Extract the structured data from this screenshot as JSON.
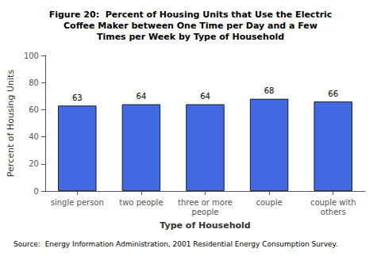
{
  "chart_data": {
    "type": "bar",
    "title": "Figure 20:  Percent of Housing Units that Use the Electric\nCoffee Maker between One Time per Day and a Few\nTimes per Week by Type of Household",
    "categories": [
      "single person",
      "two people",
      "three or more\npeople",
      "couple",
      "couple with\nothers"
    ],
    "values": [
      63,
      64,
      64,
      68,
      66
    ],
    "color": "#4169E1",
    "xlabel": "Type of Household",
    "ylabel": "Percent of Housing Units",
    "ylim": [
      0,
      100
    ],
    "yticks": [
      0,
      20,
      40,
      60,
      80,
      100
    ],
    "grid": false,
    "data_labels": true,
    "source": "Source:  Energy Information Administration, 2001 Residential Energy Consumption Survey."
  }
}
